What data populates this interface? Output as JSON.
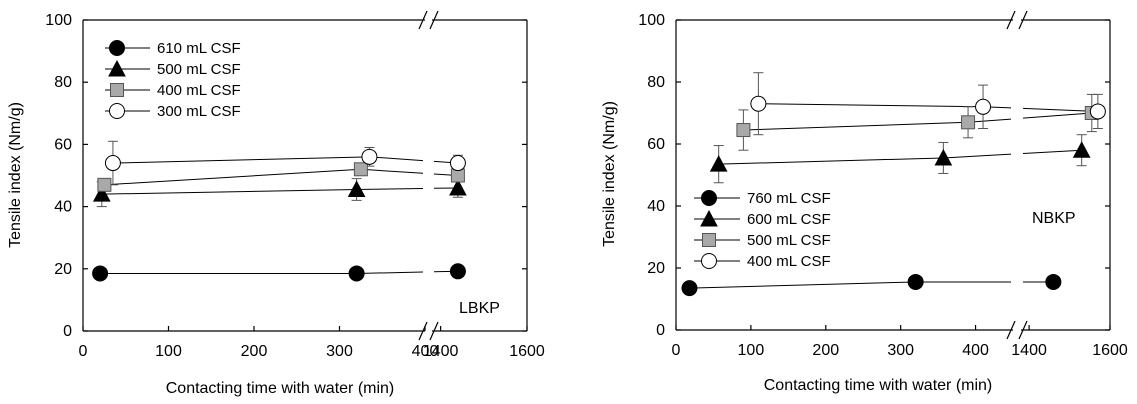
{
  "chart_data": [
    {
      "type": "scatter",
      "panel_label": "LBKP",
      "xlabel": "Contacting time with water (min)",
      "ylabel": "Tensile index (Nm/g)",
      "ylim": [
        0,
        100
      ],
      "y_ticks": [
        "0",
        "20",
        "40",
        "60",
        "80",
        "100"
      ],
      "x_segments": [
        {
          "range": [
            0,
            400
          ],
          "ticks": [
            0,
            100,
            200,
            300,
            400
          ]
        },
        {
          "range": [
            1380,
            1600
          ],
          "ticks": [
            1400,
            1600
          ]
        }
      ],
      "x_tick_labels": [
        "0",
        "100",
        "200",
        "300",
        "400",
        "1400",
        "1600"
      ],
      "axis_break": true,
      "legend_position": "top-left",
      "series": [
        {
          "name": "610 mL CSF",
          "marker": "filled-circle",
          "color": "#000000",
          "points": [
            {
              "x": 20,
              "y": 18.5,
              "err": 0
            },
            {
              "x": 320,
              "y": 18.5,
              "err": 0
            },
            {
              "x": 1440,
              "y": 19.2,
              "err": 0
            }
          ]
        },
        {
          "name": "500 mL CSF",
          "marker": "filled-triangle",
          "color": "#000000",
          "points": [
            {
              "x": 22,
              "y": 44,
              "err": 4
            },
            {
              "x": 320,
              "y": 45.5,
              "err": 3.5
            },
            {
              "x": 1440,
              "y": 46,
              "err": 3
            }
          ]
        },
        {
          "name": "400 mL CSF",
          "marker": "gray-square",
          "color": "#a9a9a9",
          "points": [
            {
              "x": 25,
              "y": 47,
              "err": 2
            },
            {
              "x": 325,
              "y": 52,
              "err": 2
            },
            {
              "x": 1440,
              "y": 50,
              "err": 2
            }
          ]
        },
        {
          "name": "300 mL CSF",
          "marker": "open-circle",
          "color": "#ffffff",
          "points": [
            {
              "x": 35,
              "y": 54,
              "err": 7
            },
            {
              "x": 335,
              "y": 56,
              "err": 3
            },
            {
              "x": 1440,
              "y": 54,
              "err": 2.5
            }
          ]
        }
      ]
    },
    {
      "type": "scatter",
      "panel_label": "NBKP",
      "xlabel": "Contacting time with water (min)",
      "ylabel": "Tensile index (Nm/g)",
      "ylim": [
        0,
        100
      ],
      "y_ticks": [
        "0",
        "20",
        "40",
        "60",
        "80",
        "100"
      ],
      "x_segments": [
        {
          "range": [
            0,
            450
          ],
          "ticks": [
            0,
            100,
            200,
            300,
            400
          ]
        },
        {
          "range": [
            1380,
            1600
          ],
          "ticks": [
            1400,
            1600
          ]
        }
      ],
      "x_tick_labels": [
        "0",
        "100",
        "200",
        "300",
        "400",
        "1400",
        "1600"
      ],
      "axis_break": true,
      "legend_position": "middle-left",
      "series": [
        {
          "name": "760 mL CSF",
          "marker": "filled-circle",
          "color": "#000000",
          "points": [
            {
              "x": 18,
              "y": 13.5,
              "err": 0
            },
            {
              "x": 320,
              "y": 15.5,
              "err": 0
            },
            {
              "x": 1460,
              "y": 15.5,
              "err": 0
            }
          ]
        },
        {
          "name": "600 mL CSF",
          "marker": "filled-triangle",
          "color": "#000000",
          "points": [
            {
              "x": 57,
              "y": 53.5,
              "err": 6
            },
            {
              "x": 357,
              "y": 55.5,
              "err": 5
            },
            {
              "x": 1530,
              "y": 58,
              "err": 5
            }
          ]
        },
        {
          "name": "500 mL CSF",
          "marker": "gray-square",
          "color": "#a9a9a9",
          "points": [
            {
              "x": 90,
              "y": 64.5,
              "err": 6.5
            },
            {
              "x": 390,
              "y": 67,
              "err": 5
            },
            {
              "x": 1555,
              "y": 70,
              "err": 6
            }
          ]
        },
        {
          "name": "400 mL CSF",
          "marker": "open-circle",
          "color": "#ffffff",
          "points": [
            {
              "x": 110,
              "y": 73,
              "err": 10
            },
            {
              "x": 410,
              "y": 72,
              "err": 7
            },
            {
              "x": 1570,
              "y": 70.5,
              "err": 5.5
            }
          ]
        }
      ]
    }
  ]
}
